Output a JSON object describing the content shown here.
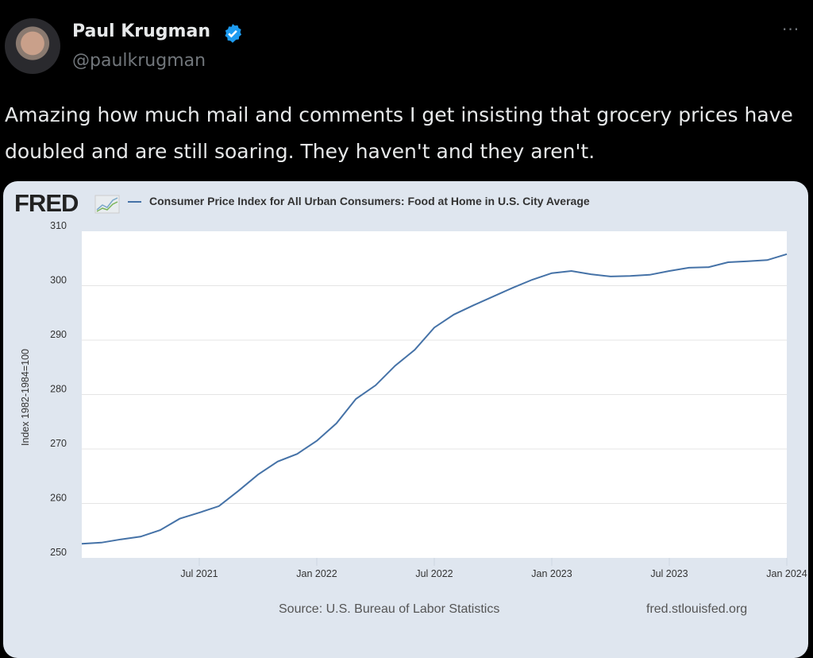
{
  "tweet": {
    "author_name": "Paul Krugman",
    "handle": "@paulkrugman",
    "more_label": "···",
    "text": "Amazing how much mail and comments I get insisting that grocery prices have doubled and are still soaring. They haven't and they aren't.",
    "verified_color": "#1d9bf0"
  },
  "chart_data": {
    "type": "line",
    "logo": "FRED",
    "title": "Consumer Price Index for All Urban Consumers: Food at Home in U.S. City Average",
    "ylabel": "Index 1982-1984=100",
    "xlabel": "",
    "ylim": [
      250,
      310
    ],
    "yticks": [
      "250",
      "260",
      "270",
      "280",
      "290",
      "300",
      "310"
    ],
    "xticks": [
      "Jul 2021",
      "Jan 2022",
      "Jul 2022",
      "Jan 2023",
      "Jul 2023",
      "Jan 2024"
    ],
    "x_start": "Jan 2021",
    "x_end": "Jan 2024",
    "frequency": "monthly",
    "series": [
      {
        "name": "CPI Food at Home",
        "color": "#4572a7",
        "values": [
          252.6,
          252.8,
          253.4,
          253.9,
          255.1,
          257.2,
          258.3,
          259.5,
          262.3,
          265.3,
          267.7,
          269.1,
          271.5,
          274.7,
          279.2,
          281.7,
          285.3,
          288.2,
          292.3,
          294.7,
          296.4,
          298.0,
          299.6,
          301.1,
          302.3,
          302.7,
          302.1,
          301.7,
          301.8,
          302.0,
          302.7,
          303.3,
          303.4,
          304.3,
          304.5,
          304.7,
          305.8
        ]
      }
    ],
    "grid": true,
    "legend": "top",
    "source": "Source: U.S. Bureau of Labor Statistics",
    "site": "fred.stlouisfed.org"
  }
}
